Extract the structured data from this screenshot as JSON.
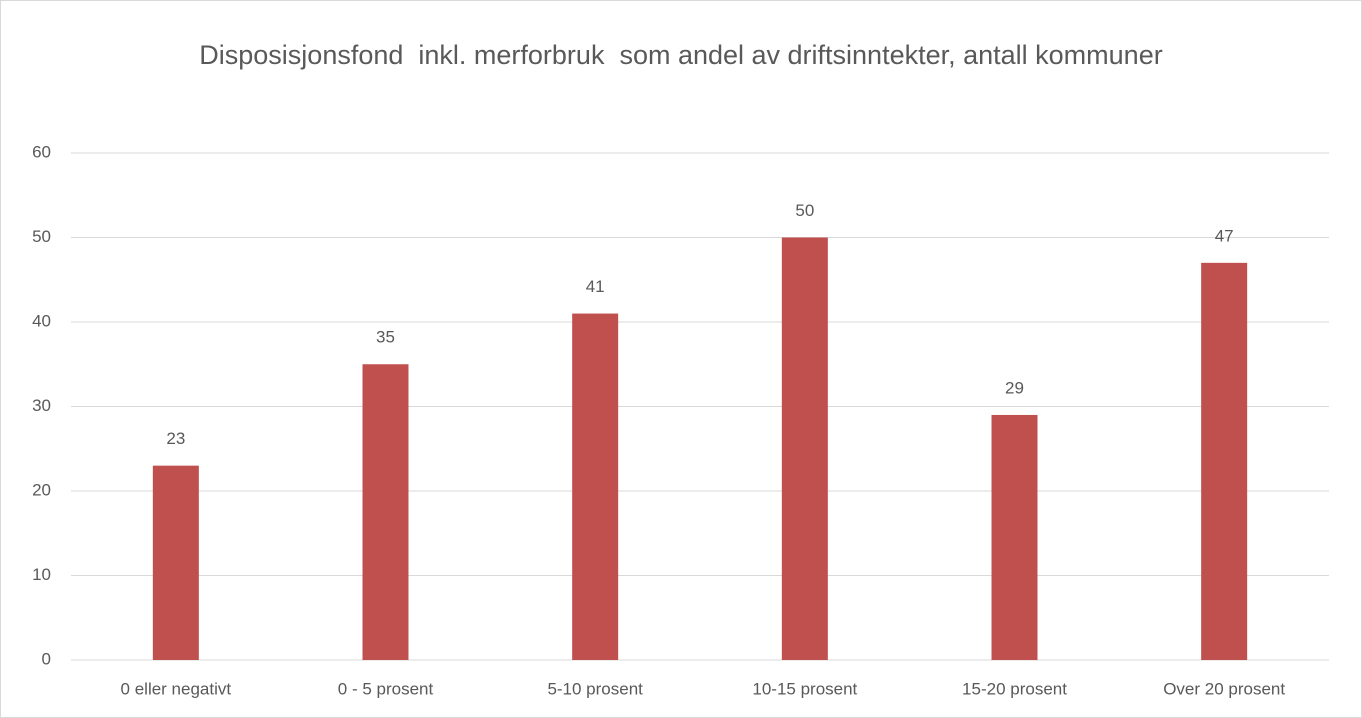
{
  "chart_data": {
    "type": "bar",
    "title": "Disposisjonsfond  inkl. merforbruk  som andel av driftsinntekter, antall kommuner",
    "categories": [
      "0 eller negativt",
      "0 - 5 prosent",
      "5-10 prosent",
      "10-15 prosent",
      "15-20 prosent",
      "Over 20 prosent"
    ],
    "values": [
      23,
      35,
      41,
      50,
      29,
      47
    ],
    "color": "#c0504d",
    "ylim": [
      0,
      60
    ],
    "yticks": [
      0,
      10,
      20,
      30,
      40,
      50,
      60
    ],
    "grid": true
  }
}
